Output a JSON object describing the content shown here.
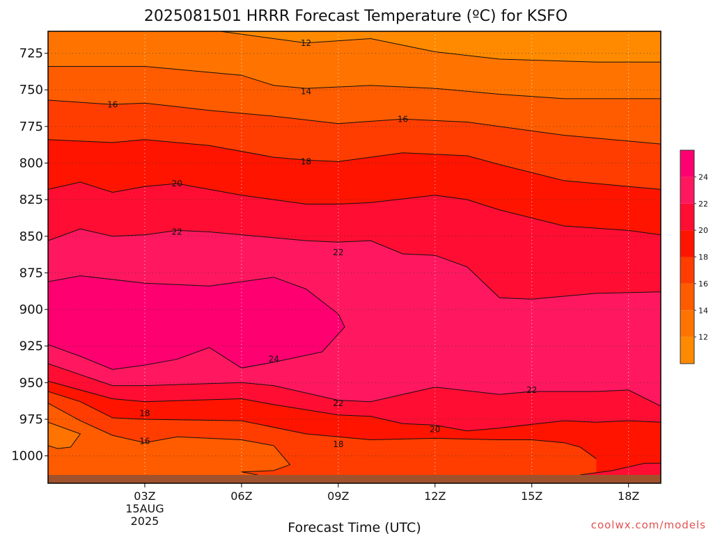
{
  "chart_data": {
    "type": "contour",
    "title": "2025081501 HRRR Forecast Temperature (ºC) for KSFO",
    "xlabel": "Forecast Time (UTC)",
    "ylabel": "",
    "x_ticks": [
      "03Z",
      "06Z",
      "09Z",
      "12Z",
      "15Z",
      "18Z"
    ],
    "x_tick_hours": [
      3,
      6,
      9,
      12,
      15,
      18
    ],
    "x_first_tick_sublabels": [
      "15AUG",
      "2025"
    ],
    "xlim_hours": [
      0,
      19
    ],
    "y_ticks": [
      725,
      750,
      775,
      800,
      825,
      850,
      875,
      900,
      925,
      950,
      975,
      1000
    ],
    "ylim_hPa": [
      710,
      1013
    ],
    "y_reversed": true,
    "grid": "dotted",
    "contour_levels": [
      12,
      14,
      16,
      18,
      20,
      22,
      24
    ],
    "contour_labels": [
      {
        "text": "12",
        "hour": 8.0,
        "p": 718
      },
      {
        "text": "14",
        "hour": 8.0,
        "p": 751
      },
      {
        "text": "16",
        "hour": 2.0,
        "p": 760
      },
      {
        "text": "16",
        "hour": 11.0,
        "p": 770
      },
      {
        "text": "18",
        "hour": 8.0,
        "p": 799
      },
      {
        "text": "20",
        "hour": 4.0,
        "p": 814
      },
      {
        "text": "22",
        "hour": 4.0,
        "p": 847
      },
      {
        "text": "22",
        "hour": 9.0,
        "p": 861
      },
      {
        "text": "24",
        "hour": 7.0,
        "p": 934
      },
      {
        "text": "22",
        "hour": 15.0,
        "p": 955
      },
      {
        "text": "22",
        "hour": 9.0,
        "p": 964
      },
      {
        "text": "20",
        "hour": 12.0,
        "p": 982
      },
      {
        "text": "18",
        "hour": 3.0,
        "p": 971
      },
      {
        "text": "18",
        "hour": 9.0,
        "p": 992
      },
      {
        "text": "16",
        "hour": 3.0,
        "p": 990
      }
    ],
    "contours": [
      {
        "level": 12,
        "hours": [
          5,
          8,
          10,
          12,
          14,
          17,
          19
        ],
        "p": [
          709,
          718,
          715,
          724,
          729,
          731,
          731
        ]
      },
      {
        "level": 14,
        "hours": [
          0,
          3,
          6,
          7,
          8,
          10,
          12,
          14,
          16,
          19
        ],
        "p": [
          734,
          734,
          740,
          747,
          749,
          747,
          749,
          753,
          756,
          756
        ]
      },
      {
        "level": 16,
        "hours": [
          0,
          2,
          3,
          5,
          7,
          9,
          11,
          13,
          14,
          16,
          19
        ],
        "p": [
          757,
          760,
          759,
          764,
          768,
          773,
          770,
          772,
          775,
          781,
          787
        ]
      },
      {
        "level": 18,
        "hours": [
          0,
          2,
          3,
          5,
          7,
          8,
          9,
          11,
          13,
          14,
          16,
          19
        ],
        "p": [
          784,
          786,
          784,
          788,
          796,
          798,
          799,
          793,
          795,
          801,
          812,
          818
        ]
      },
      {
        "level": 20,
        "hours": [
          0,
          1,
          2,
          3,
          4,
          6,
          7,
          8,
          9,
          10,
          12,
          13,
          14,
          16,
          18,
          19
        ],
        "p": [
          818,
          813,
          820,
          816,
          814,
          822,
          825,
          828,
          828,
          827,
          822,
          825,
          832,
          843,
          846,
          849
        ]
      },
      {
        "level": 22,
        "hours": [
          0,
          1,
          2,
          3,
          4,
          5,
          6,
          7,
          8,
          9,
          10,
          11,
          12,
          13,
          14,
          15,
          17,
          19
        ],
        "p": [
          853,
          845,
          850,
          849,
          846,
          847,
          849,
          851,
          853,
          854,
          853,
          862,
          863,
          871,
          892,
          893,
          889,
          888
        ]
      },
      {
        "level": 24,
        "hours": [
          0,
          1,
          3,
          5,
          6,
          7,
          8,
          9,
          9.2,
          8.5,
          7,
          6,
          5,
          4,
          3,
          2,
          1,
          0
        ],
        "p": [
          881,
          877,
          882,
          884,
          881,
          878,
          886,
          903,
          912,
          929,
          936,
          940,
          926,
          934,
          938,
          941,
          932,
          924
        ]
      },
      {
        "level": 22,
        "hours": [
          0,
          2,
          3,
          6,
          7,
          9,
          10,
          11,
          12,
          14,
          15,
          16,
          17,
          18,
          19
        ],
        "p": [
          937,
          952,
          952,
          950,
          952,
          962,
          963,
          958,
          953,
          958,
          956,
          956,
          956,
          955,
          966
        ]
      },
      {
        "level": 20,
        "hours": [
          0,
          2,
          3,
          6,
          7,
          9,
          10,
          11,
          12,
          13,
          14,
          16,
          17,
          18,
          19
        ],
        "p": [
          949,
          961,
          963,
          961,
          965,
          972,
          973,
          978,
          979,
          983,
          981,
          976,
          977,
          976,
          977
        ]
      },
      {
        "level": 18,
        "hours": [
          0,
          1,
          2,
          3,
          6,
          8,
          10,
          12,
          14,
          15,
          16,
          16.5,
          17
        ],
        "p": [
          956,
          963,
          974,
          975,
          976,
          985,
          989,
          988,
          989,
          989,
          991,
          994,
          1002
        ]
      },
      {
        "level": 16,
        "hours": [
          0,
          1,
          2,
          3,
          4,
          6,
          7,
          7.5,
          7,
          6,
          6.5
        ],
        "p": [
          964,
          976,
          986,
          991,
          987,
          989,
          993,
          1006,
          1010,
          1011,
          1013
        ]
      },
      {
        "level": 14,
        "hours": [
          0,
          1.0,
          0.7,
          0.3,
          0
        ],
        "p": [
          977,
          985,
          994,
          995,
          993
        ]
      },
      {
        "level": 20,
        "hours": [
          16.5,
          17.5,
          18.5,
          19
        ],
        "p": [
          1013,
          1010,
          1005,
          1005
        ]
      }
    ],
    "colorbar": {
      "levels": [
        12,
        14,
        16,
        18,
        20,
        22,
        24
      ],
      "labels": [
        "12",
        "14",
        "16",
        "18",
        "20",
        "22",
        "24"
      ]
    },
    "colors": {
      "lt12": "#ff8a00",
      "12_14": "#ff7400",
      "14_16": "#ff5c00",
      "16_18": "#ff3d00",
      "18_20": "#ff1400",
      "20_22": "#ff0d33",
      "22_24": "#ff1860",
      "ge24": "#ff0070",
      "ground": "#a0522d",
      "contour_line": "#111111",
      "watermark": "#e05050"
    }
  },
  "watermark": "coolwx.com/models"
}
